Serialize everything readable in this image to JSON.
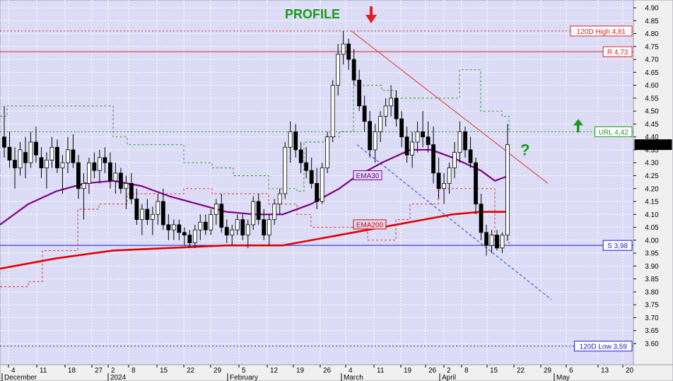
{
  "chart_data": {
    "type": "candlestick",
    "title": "PROFILE",
    "question_mark": "?",
    "current_price": "4,37000",
    "y_axis": {
      "min": 3.56,
      "max": 4.91,
      "ticks": [
        "4.90",
        "4.85",
        "4.80",
        "4.75",
        "4.70",
        "4.65",
        "4.60",
        "4.55",
        "4.50",
        "4.45",
        "4.40",
        "4.35",
        "4.30",
        "4.25",
        "4.20",
        "4.15",
        "4.10",
        "4.05",
        "4.00",
        "3.95",
        "3.90",
        "3.85",
        "3.80",
        "3.75",
        "3.70",
        "3.65",
        "3.60"
      ]
    },
    "x_axis": {
      "day_ticks": [
        "4",
        "11",
        "18",
        "27",
        "2",
        "8",
        "15",
        "22",
        "29",
        "5",
        "12",
        "19",
        "26",
        "4",
        "11",
        "19",
        "26",
        "2",
        "8",
        "15",
        "22",
        "29",
        "6",
        "13",
        "20"
      ],
      "months": [
        "December",
        "2024",
        "February",
        "March",
        "April",
        "May"
      ]
    },
    "levels": [
      {
        "name": "120D High",
        "label": "120D High 4,81",
        "value": 4.81,
        "style": "dotted",
        "color": "#e02020"
      },
      {
        "name": "Resistance",
        "label": "R 4,73",
        "value": 4.73,
        "style": "solid",
        "color": "#e02020"
      },
      {
        "name": "URL",
        "label": "URL 4,42",
        "value": 4.42,
        "style": "dotted",
        "color": "#1a9a1a"
      },
      {
        "name": "Support",
        "label": "S 3,98",
        "value": 3.98,
        "style": "solid",
        "color": "#1a1acc"
      },
      {
        "name": "120D Low",
        "label": "120D Low 3,59",
        "value": 3.59,
        "style": "dotted",
        "color": "#1a1acc"
      }
    ],
    "series": [
      {
        "name": "EMA30",
        "color": "#800080"
      },
      {
        "name": "EMA200",
        "color": "#e00000"
      }
    ],
    "candles": [
      [
        4.4,
        4.52,
        4.32,
        4.36
      ],
      [
        4.36,
        4.42,
        4.28,
        4.31
      ],
      [
        4.31,
        4.36,
        4.2,
        4.28
      ],
      [
        4.28,
        4.38,
        4.25,
        4.35
      ],
      [
        4.34,
        4.4,
        4.24,
        4.3
      ],
      [
        4.3,
        4.42,
        4.28,
        4.38
      ],
      [
        4.38,
        4.44,
        4.3,
        4.33
      ],
      [
        4.32,
        4.36,
        4.24,
        4.28
      ],
      [
        4.28,
        4.34,
        4.2,
        4.31
      ],
      [
        4.31,
        4.4,
        4.28,
        4.36
      ],
      [
        4.36,
        4.39,
        4.26,
        4.28
      ],
      [
        4.28,
        4.33,
        4.18,
        4.3
      ],
      [
        4.3,
        4.4,
        4.26,
        4.35
      ],
      [
        4.35,
        4.41,
        4.28,
        4.3
      ],
      [
        4.3,
        4.33,
        4.16,
        4.2
      ],
      [
        4.2,
        4.26,
        4.08,
        4.22
      ],
      [
        4.22,
        4.32,
        4.18,
        4.3
      ],
      [
        4.3,
        4.34,
        4.24,
        4.27
      ],
      [
        4.27,
        4.35,
        4.22,
        4.32
      ],
      [
        4.32,
        4.36,
        4.26,
        4.3
      ],
      [
        4.3,
        4.34,
        4.2,
        4.23
      ],
      [
        4.23,
        4.3,
        4.18,
        4.26
      ],
      [
        4.26,
        4.28,
        4.18,
        4.2
      ],
      [
        4.2,
        4.25,
        4.12,
        4.22
      ],
      [
        4.22,
        4.26,
        4.14,
        4.16
      ],
      [
        4.16,
        4.2,
        4.06,
        4.08
      ],
      [
        4.08,
        4.14,
        4.02,
        4.12
      ],
      [
        4.12,
        4.16,
        4.06,
        4.08
      ],
      [
        4.08,
        4.13,
        4.02,
        4.1
      ],
      [
        4.1,
        4.18,
        4.06,
        4.15
      ],
      [
        4.15,
        4.2,
        4.04,
        4.06
      ],
      [
        4.06,
        4.1,
        4.0,
        4.04
      ],
      [
        4.04,
        4.08,
        4.0,
        4.06
      ],
      [
        4.06,
        4.08,
        4.0,
        4.03
      ],
      [
        4.03,
        4.05,
        3.98,
        4.02
      ],
      [
        4.02,
        4.04,
        3.97,
        3.99
      ],
      [
        3.99,
        4.06,
        3.97,
        4.04
      ],
      [
        4.04,
        4.1,
        4.0,
        4.07
      ],
      [
        4.07,
        4.1,
        4.02,
        4.04
      ],
      [
        4.04,
        4.12,
        4.02,
        4.1
      ],
      [
        4.1,
        4.16,
        4.06,
        4.14
      ],
      [
        4.14,
        4.18,
        4.03,
        4.05
      ],
      [
        4.05,
        4.08,
        3.99,
        4.02
      ],
      [
        4.02,
        4.06,
        3.98,
        4.04
      ],
      [
        4.04,
        4.1,
        4.02,
        4.08
      ],
      [
        4.08,
        4.1,
        4.0,
        4.02
      ],
      [
        4.02,
        4.08,
        3.97,
        4.06
      ],
      [
        4.06,
        4.17,
        4.04,
        4.15
      ],
      [
        4.15,
        4.18,
        4.06,
        4.08
      ],
      [
        4.08,
        4.12,
        4.0,
        4.02
      ],
      [
        4.02,
        4.1,
        3.98,
        4.08
      ],
      [
        4.08,
        4.16,
        4.06,
        4.14
      ],
      [
        4.14,
        4.2,
        4.1,
        4.18
      ],
      [
        4.18,
        4.38,
        4.16,
        4.36
      ],
      [
        4.36,
        4.46,
        4.3,
        4.42
      ],
      [
        4.42,
        4.45,
        4.32,
        4.35
      ],
      [
        4.35,
        4.38,
        4.26,
        4.3
      ],
      [
        4.3,
        4.36,
        4.24,
        4.27
      ],
      [
        4.27,
        4.32,
        4.2,
        4.22
      ],
      [
        4.22,
        4.28,
        4.12,
        4.15
      ],
      [
        4.15,
        4.3,
        4.14,
        4.28
      ],
      [
        4.28,
        4.42,
        4.26,
        4.4
      ],
      [
        4.4,
        4.62,
        4.38,
        4.6
      ],
      [
        4.6,
        4.76,
        4.56,
        4.72
      ],
      [
        4.72,
        4.81,
        4.68,
        4.76
      ],
      [
        4.76,
        4.78,
        4.66,
        4.7
      ],
      [
        4.7,
        4.74,
        4.6,
        4.62
      ],
      [
        4.62,
        4.66,
        4.5,
        4.52
      ],
      [
        4.52,
        4.56,
        4.42,
        4.46
      ],
      [
        4.46,
        4.5,
        4.32,
        4.35
      ],
      [
        4.35,
        4.45,
        4.3,
        4.42
      ],
      [
        4.42,
        4.5,
        4.38,
        4.48
      ],
      [
        4.48,
        4.55,
        4.44,
        4.52
      ],
      [
        4.52,
        4.6,
        4.48,
        4.55
      ],
      [
        4.55,
        4.58,
        4.44,
        4.47
      ],
      [
        4.47,
        4.5,
        4.36,
        4.4
      ],
      [
        4.4,
        4.44,
        4.3,
        4.33
      ],
      [
        4.33,
        4.42,
        4.28,
        4.38
      ],
      [
        4.38,
        4.46,
        4.34,
        4.42
      ],
      [
        4.42,
        4.5,
        4.36,
        4.4
      ],
      [
        4.4,
        4.46,
        4.34,
        4.37
      ],
      [
        4.37,
        4.44,
        4.22,
        4.26
      ],
      [
        4.26,
        4.32,
        4.16,
        4.2
      ],
      [
        4.2,
        4.26,
        4.14,
        4.22
      ],
      [
        4.22,
        4.3,
        4.18,
        4.28
      ],
      [
        4.28,
        4.38,
        4.24,
        4.34
      ],
      [
        4.34,
        4.46,
        4.3,
        4.42
      ],
      [
        4.42,
        4.44,
        4.32,
        4.35
      ],
      [
        4.35,
        4.4,
        4.28,
        4.3
      ],
      [
        4.3,
        4.32,
        4.1,
        4.14
      ],
      [
        4.14,
        4.18,
        4.0,
        4.03
      ],
      [
        4.03,
        4.06,
        3.94,
        3.98
      ],
      [
        3.98,
        4.04,
        3.95,
        4.02
      ],
      [
        4.02,
        4.04,
        3.96,
        3.97
      ],
      [
        3.97,
        4.03,
        3.95,
        4.02
      ],
      [
        4.02,
        4.45,
        4.0,
        4.37
      ]
    ],
    "ema30": [
      [
        0,
        4.06
      ],
      [
        40,
        4.14
      ],
      [
        80,
        4.19
      ],
      [
        120,
        4.22
      ],
      [
        160,
        4.23
      ],
      [
        200,
        4.21
      ],
      [
        240,
        4.17
      ],
      [
        280,
        4.14
      ],
      [
        320,
        4.11
      ],
      [
        360,
        4.1
      ],
      [
        400,
        4.1
      ],
      [
        440,
        4.14
      ],
      [
        480,
        4.2
      ],
      [
        500,
        4.24
      ],
      [
        540,
        4.3
      ],
      [
        580,
        4.35
      ],
      [
        610,
        4.35
      ],
      [
        640,
        4.32
      ],
      [
        680,
        4.27
      ],
      [
        700,
        4.23
      ],
      [
        720,
        4.25
      ]
    ],
    "ema200": [
      [
        0,
        3.89
      ],
      [
        80,
        3.93
      ],
      [
        160,
        3.96
      ],
      [
        240,
        3.97
      ],
      [
        320,
        3.98
      ],
      [
        400,
        3.98
      ],
      [
        440,
        4.0
      ],
      [
        480,
        4.02
      ],
      [
        520,
        4.04
      ],
      [
        560,
        4.06
      ],
      [
        600,
        4.08
      ],
      [
        640,
        4.1
      ],
      [
        680,
        4.11
      ],
      [
        720,
        4.11
      ]
    ],
    "trendlines": [
      {
        "name": "down-resistance",
        "color": "#e03030",
        "style": "solid",
        "x1": 497,
        "y1": 4.81,
        "x2": 775,
        "y2": 4.22
      },
      {
        "name": "down-channel",
        "color": "#2040e0",
        "style": "dashed",
        "x1": 505,
        "y1": 4.37,
        "x2": 780,
        "y2": 3.77
      }
    ],
    "stops": [
      {
        "name": "upper-stop",
        "color": "#1a9a1a",
        "points": [
          [
            0,
            4.48
          ],
          [
            10,
            4.52
          ],
          [
            140,
            4.52
          ],
          [
            160,
            4.4
          ],
          [
            180,
            4.37
          ],
          [
            260,
            4.3
          ],
          [
            300,
            4.28
          ],
          [
            330,
            4.25
          ],
          [
            380,
            4.2
          ],
          [
            420,
            4.19
          ],
          [
            430,
            4.38
          ],
          [
            460,
            4.4
          ],
          [
            480,
            4.42
          ],
          [
            500,
            4.6
          ],
          [
            540,
            4.58
          ],
          [
            560,
            4.55
          ],
          [
            580,
            4.55
          ],
          [
            600,
            4.55
          ],
          [
            620,
            4.55
          ],
          [
            650,
            4.66
          ],
          [
            680,
            4.5
          ],
          [
            710,
            4.48
          ],
          [
            720,
            4.42
          ]
        ]
      },
      {
        "name": "lower-stop",
        "color": "#e02020",
        "points": [
          [
            0,
            3.82
          ],
          [
            40,
            3.84
          ],
          [
            60,
            3.96
          ],
          [
            100,
            3.96
          ],
          [
            110,
            4.12
          ],
          [
            140,
            4.14
          ],
          [
            180,
            4.18
          ],
          [
            260,
            4.2
          ],
          [
            300,
            4.18
          ],
          [
            380,
            4.14
          ],
          [
            420,
            4.1
          ],
          [
            440,
            4.05
          ],
          [
            520,
            4.0
          ],
          [
            560,
            4.08
          ],
          [
            580,
            4.14
          ],
          [
            620,
            4.2
          ],
          [
            660,
            4.2
          ],
          [
            700,
            4.0
          ],
          [
            720,
            3.98
          ]
        ]
      }
    ]
  }
}
